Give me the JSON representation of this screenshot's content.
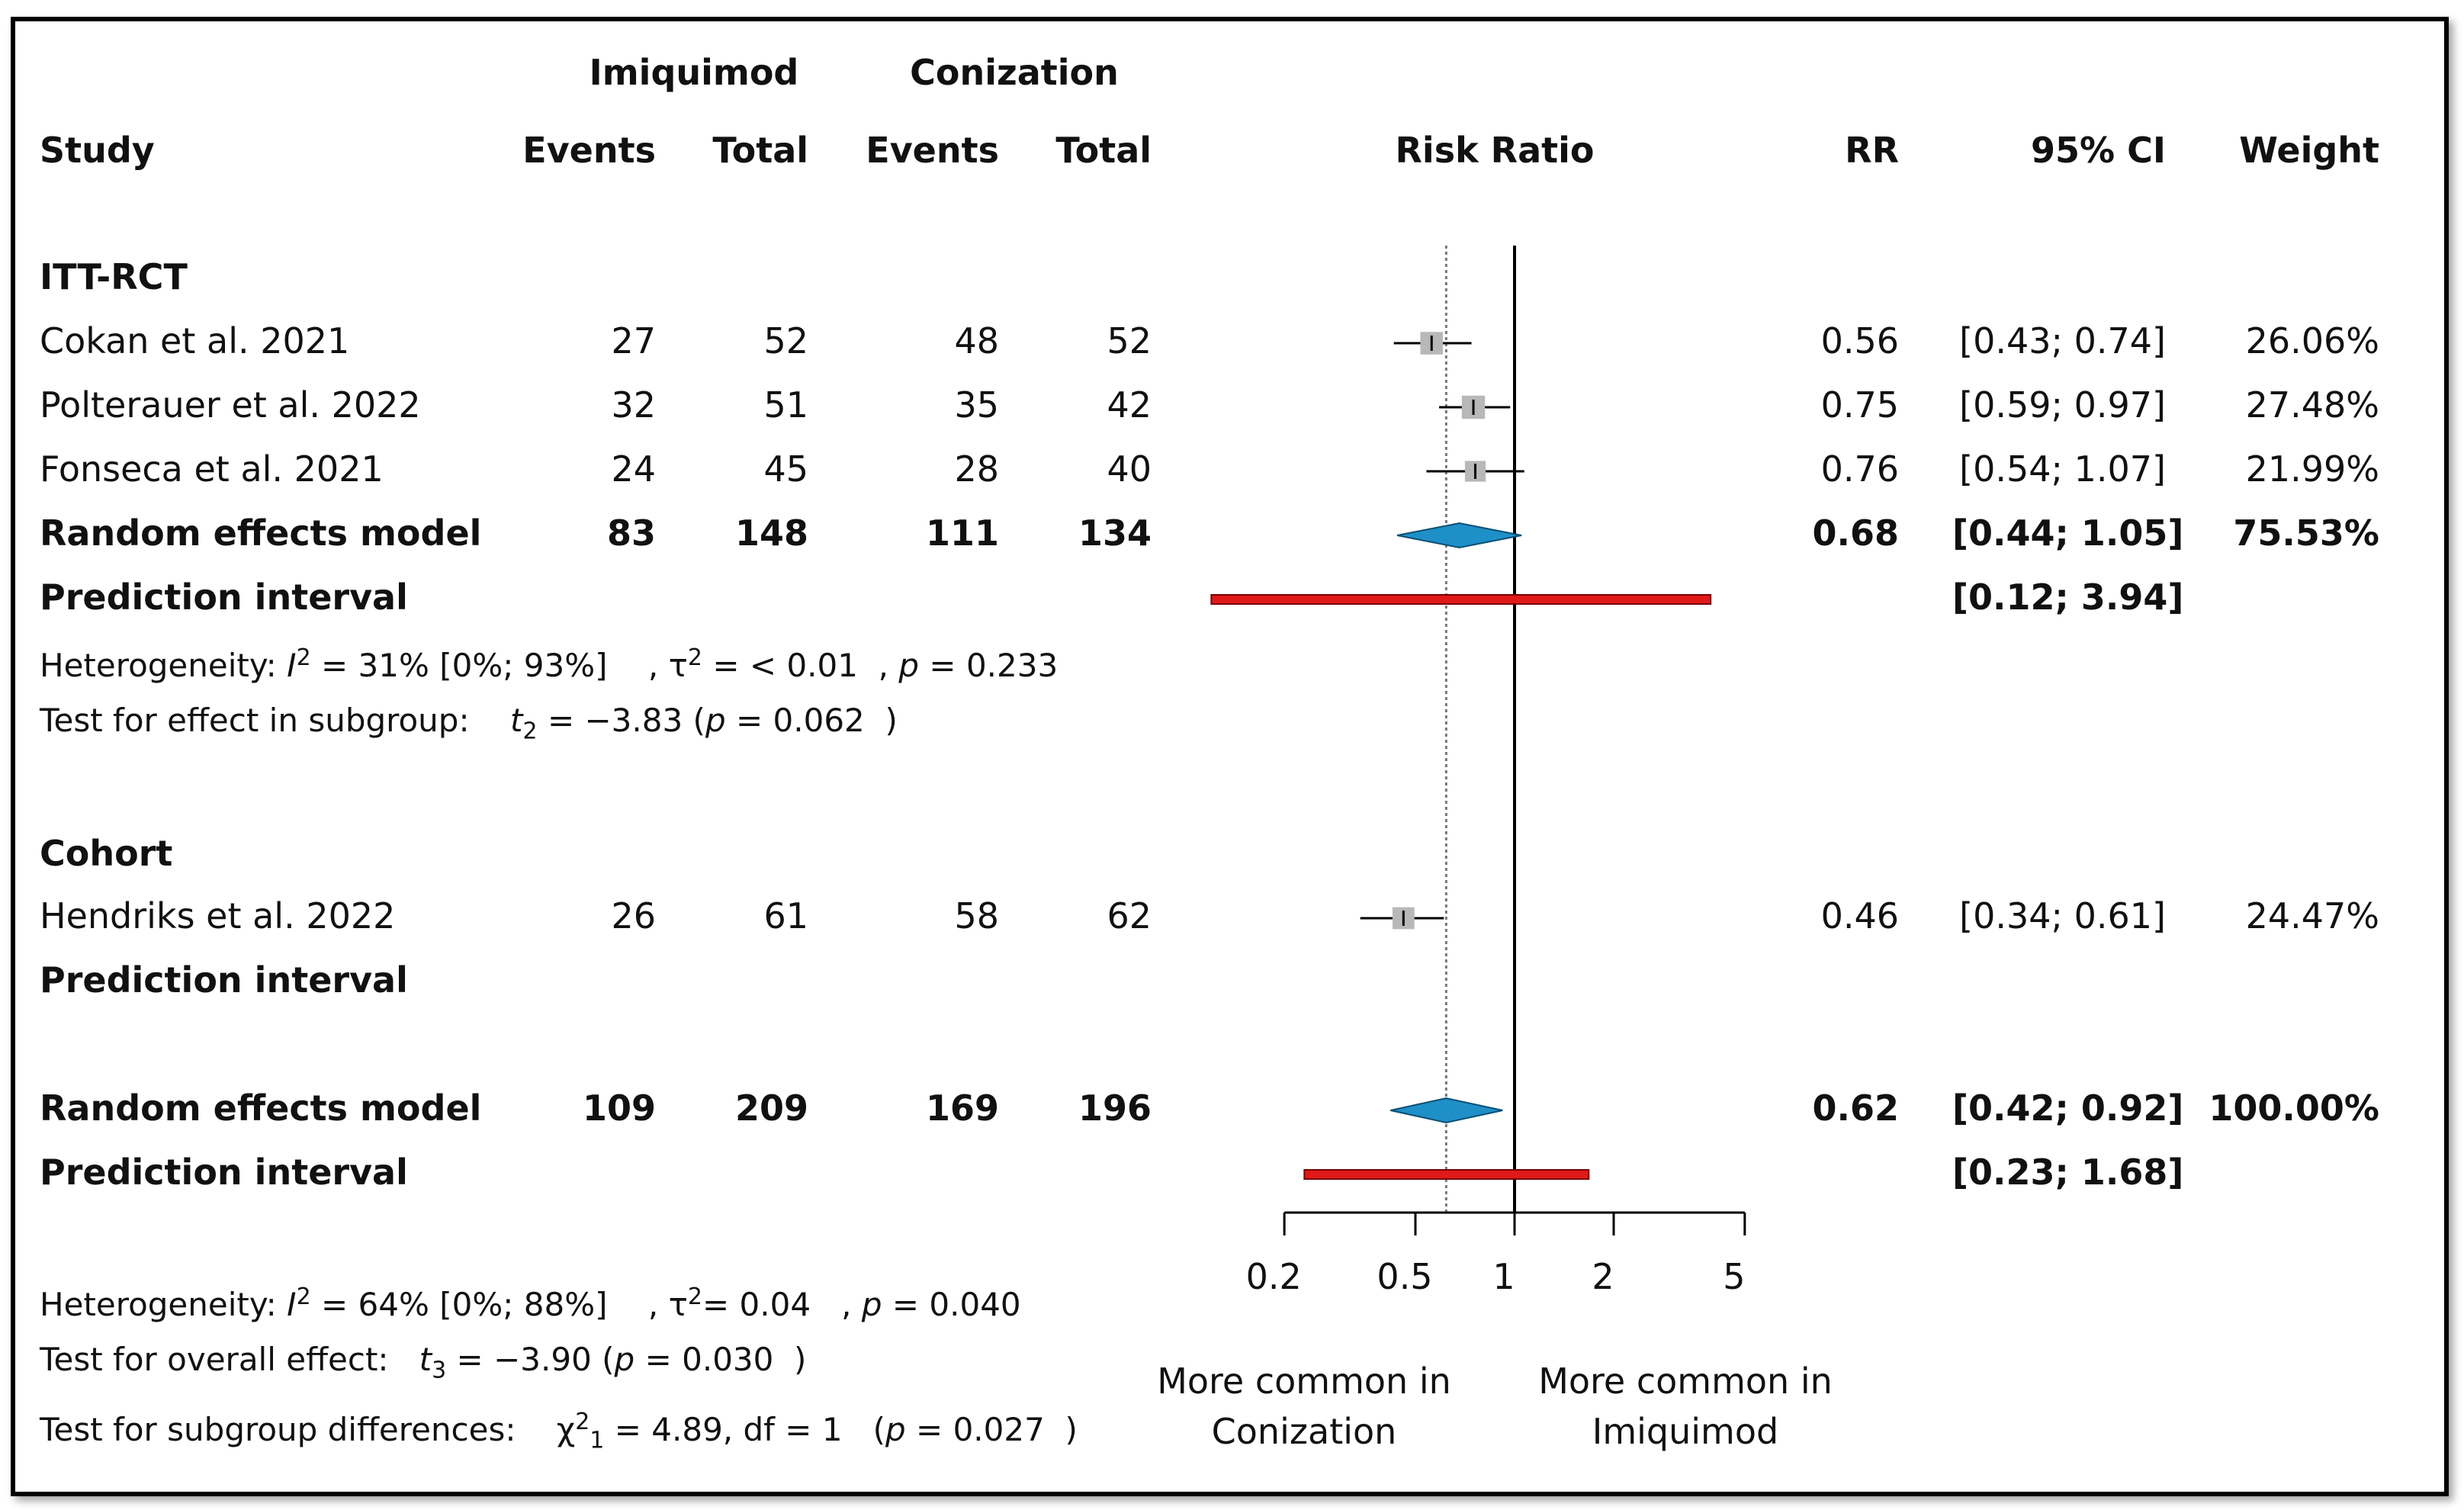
{
  "colors": {
    "diamond": "#1f8fc7",
    "prediction_bar": "#e01919",
    "square": "#b8b8b8"
  },
  "header": {
    "group_imiquimod": "Imiquimod",
    "group_conization": "Conization",
    "study": "Study",
    "events": "Events",
    "total": "Total",
    "risk_ratio": "Risk Ratio",
    "rr": "RR",
    "ci": "95% CI",
    "weight": "Weight"
  },
  "subgroups": [
    {
      "label": "ITT-RCT",
      "studies": [
        {
          "study": "Cokan et al. 2021",
          "imi_events": "27",
          "imi_total": "52",
          "con_events": "48",
          "con_total": "52",
          "rr": "0.56",
          "ci": "[0.43; 0.74]",
          "weight": "26.06%"
        },
        {
          "study": "Polterauer et al. 2022",
          "imi_events": "32",
          "imi_total": "51",
          "con_events": "35",
          "con_total": "42",
          "rr": "0.75",
          "ci": "[0.59; 0.97]",
          "weight": "27.48%"
        },
        {
          "study": "Fonseca et al. 2021",
          "imi_events": "24",
          "imi_total": "45",
          "con_events": "28",
          "con_total": "40",
          "rr": "0.76",
          "ci": "[0.54; 1.07]",
          "weight": "21.99%"
        }
      ],
      "model": {
        "label": "Random effects model",
        "imi_events": "83",
        "imi_total": "148",
        "con_events": "111",
        "con_total": "134",
        "rr": "0.68",
        "ci": "[0.44; 1.05]",
        "weight": "75.53%"
      },
      "prediction": {
        "label": "Prediction interval",
        "ci": "[0.12; 3.94]"
      },
      "heterogeneity": {
        "prefix": "Heterogeneity: ",
        "i2": "= 31% [0%; 93%]",
        "tau2": "= < 0.01",
        "p": "= 0.233"
      },
      "test": {
        "prefix": "Test for effect in subgroup: ",
        "stat": "= −3.83",
        "p": "= 0.062"
      }
    },
    {
      "label": "Cohort",
      "studies": [
        {
          "study": "Hendriks et al. 2022",
          "imi_events": "26",
          "imi_total": "61",
          "con_events": "58",
          "con_total": "62",
          "rr": "0.46",
          "ci": "[0.34; 0.61]",
          "weight": "24.47%"
        }
      ],
      "prediction": {
        "label": "Prediction interval"
      }
    }
  ],
  "overall": {
    "model": {
      "label": "Random effects model",
      "imi_events": "109",
      "imi_total": "209",
      "con_events": "169",
      "con_total": "196",
      "rr": "0.62",
      "ci": "[0.42; 0.92]",
      "weight": "100.00%"
    },
    "prediction": {
      "label": "Prediction interval",
      "ci": "[0.23; 1.68]"
    },
    "heterogeneity": {
      "prefix": "Heterogeneity: ",
      "i2": "= 64% [0%; 88%]",
      "tau2": "= 0.04",
      "p": "= 0.040"
    },
    "test_overall": {
      "prefix": "Test for overall effect: ",
      "stat": "= −3.90",
      "p": "= 0.030"
    },
    "test_subgroup": {
      "prefix": "Test for subgroup differences: ",
      "stat": "= 4.89, df = 1",
      "p": "= 0.027"
    }
  },
  "axis": {
    "ticks": [
      "0.2",
      "0.5",
      "1",
      "2",
      "5"
    ],
    "left_label_1": "More common in",
    "left_label_2": "Conization",
    "right_label_1": "More common in",
    "right_label_2": "Imiquimod"
  },
  "chart_data": {
    "type": "forest",
    "title": "Risk Ratio",
    "scale": "log",
    "xlim": [
      0.2,
      5
    ],
    "ticks": [
      0.2,
      0.5,
      1,
      2,
      5
    ],
    "null_line": 1,
    "overall_estimate_line": 0.62,
    "studies": [
      {
        "name": "Cokan et al. 2021",
        "rr": 0.56,
        "lo": 0.43,
        "hi": 0.74,
        "weight": 26.06,
        "subgroup": "ITT-RCT"
      },
      {
        "name": "Polterauer et al. 2022",
        "rr": 0.75,
        "lo": 0.59,
        "hi": 0.97,
        "weight": 27.48,
        "subgroup": "ITT-RCT"
      },
      {
        "name": "Fonseca et al. 2021",
        "rr": 0.76,
        "lo": 0.54,
        "hi": 1.07,
        "weight": 21.99,
        "subgroup": "ITT-RCT"
      },
      {
        "name": "Hendriks et al. 2022",
        "rr": 0.46,
        "lo": 0.34,
        "hi": 0.61,
        "weight": 24.47,
        "subgroup": "Cohort"
      }
    ],
    "summaries": [
      {
        "name": "ITT-RCT random effects",
        "rr": 0.68,
        "lo": 0.44,
        "hi": 1.05
      },
      {
        "name": "Overall random effects",
        "rr": 0.62,
        "lo": 0.42,
        "hi": 0.92
      }
    ],
    "prediction_intervals": [
      {
        "name": "ITT-RCT",
        "lo": 0.12,
        "hi": 3.94
      },
      {
        "name": "Overall",
        "lo": 0.23,
        "hi": 1.68
      }
    ]
  }
}
